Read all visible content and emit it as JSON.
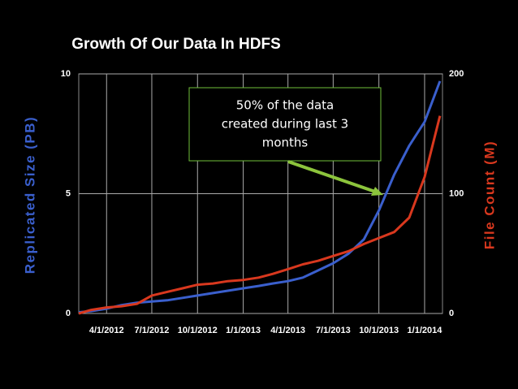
{
  "chart_data": {
    "type": "line",
    "title": "Growth Of Our Data In HDFS",
    "ylabel": "Replicated Size (PB)",
    "y2label": "File Count (M)",
    "annotation": [
      "50% of the data",
      "created during last 3",
      "months"
    ],
    "x": [
      "2/5/2012",
      "3/1/2012",
      "4/1/2012",
      "5/1/2012",
      "6/1/2012",
      "7/1/2012",
      "8/1/2012",
      "9/1/2012",
      "10/1/2012",
      "11/1/2012",
      "12/1/2012",
      "1/1/2013",
      "2/1/2013",
      "3/1/2013",
      "4/1/2013",
      "5/1/2013",
      "6/1/2013",
      "7/1/2013",
      "8/1/2013",
      "9/1/2013",
      "10/1/2013",
      "11/1/2013",
      "12/1/2013",
      "1/1/2014",
      "2/1/2014"
    ],
    "series": [
      {
        "name": "Replicated Size (PB)",
        "color": "#3a5fcd",
        "values": [
          0.05,
          0.1,
          0.2,
          0.35,
          0.45,
          0.5,
          0.55,
          0.65,
          0.75,
          0.85,
          0.95,
          1.05,
          1.15,
          1.25,
          1.35,
          1.5,
          1.8,
          2.1,
          2.5,
          3.1,
          4.3,
          5.8,
          7.0,
          8.0,
          9.7
        ]
      },
      {
        "name": "File Count (M)",
        "color": "#d9381e",
        "axis": "y2",
        "values": [
          0,
          3,
          5,
          6,
          8,
          15,
          18,
          21,
          24,
          25,
          27,
          28,
          30,
          33,
          37,
          41,
          44,
          48,
          52,
          58,
          63,
          68,
          80,
          114,
          165
        ]
      }
    ],
    "xlim": [
      "2/5/2012",
      "2/6/2014"
    ],
    "xticks": [
      "4/1/2012",
      "7/1/2012",
      "10/1/2012",
      "1/1/2013",
      "4/1/2013",
      "7/1/2013",
      "10/1/2013",
      "1/1/2014"
    ],
    "ylim": [
      0,
      10
    ],
    "yticks": [
      0,
      5,
      10
    ],
    "y2lim": [
      0,
      200
    ],
    "y2ticks": [
      0,
      100,
      200
    ],
    "grid": true
  }
}
